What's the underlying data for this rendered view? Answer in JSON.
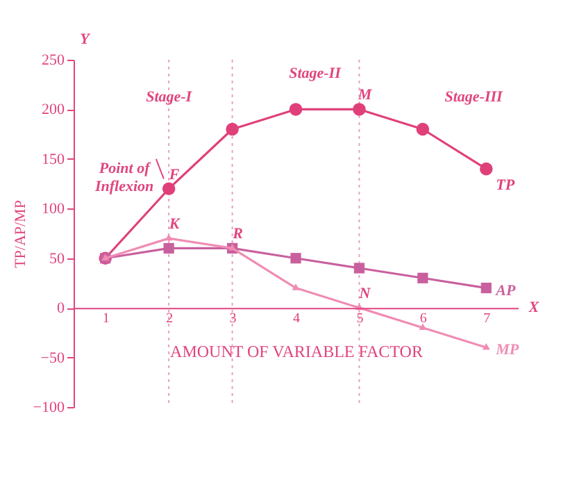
{
  "chart_data": {
    "type": "line",
    "xlabel": "AMOUNT OF VARIABLE FACTOR",
    "ylabel": "TP/AP/MP",
    "x": [
      1,
      2,
      3,
      4,
      5,
      6,
      7
    ],
    "xlim": [
      0.5,
      7.5
    ],
    "xticks": [
      1,
      2,
      3,
      4,
      5,
      6,
      7
    ],
    "ylim": [
      -100,
      250
    ],
    "yticks": [
      -100,
      -50,
      0,
      50,
      100,
      150,
      200,
      250
    ],
    "grid": false,
    "legend": false,
    "series": [
      {
        "name": "TP",
        "color": "#e0407a",
        "marker": "circle",
        "values": [
          50,
          120,
          180,
          200,
          200,
          180,
          140
        ]
      },
      {
        "name": "AP",
        "color": "#c9609e",
        "marker": "square",
        "values": [
          50,
          60,
          60,
          50,
          40,
          30,
          20
        ]
      },
      {
        "name": "MP",
        "color": "#f08cb4",
        "marker": "triangle",
        "values": [
          50,
          70,
          60,
          20,
          0,
          -20,
          -40
        ]
      }
    ],
    "ref_lines": [
      {
        "axis": "x",
        "value": 2,
        "line_style": "dotted",
        "color": "#e9a0bf"
      },
      {
        "axis": "x",
        "value": 3,
        "line_style": "dotted",
        "color": "#e9a0bf"
      },
      {
        "axis": "x",
        "value": 5,
        "line_style": "dotted",
        "color": "#e9a0bf"
      }
    ],
    "annotations": [
      "Y",
      "X",
      "Stage-I",
      "Stage-II",
      "Stage-III",
      "Point of Inflexion",
      {
        "text": "F",
        "x": 2,
        "y": 120
      },
      {
        "text": "K",
        "x": 2,
        "y": 70
      },
      {
        "text": "R",
        "x": 3,
        "y": 60
      },
      {
        "text": "M",
        "x": 5,
        "y": 200
      },
      {
        "text": "N",
        "x": 5,
        "y": 0
      }
    ]
  }
}
